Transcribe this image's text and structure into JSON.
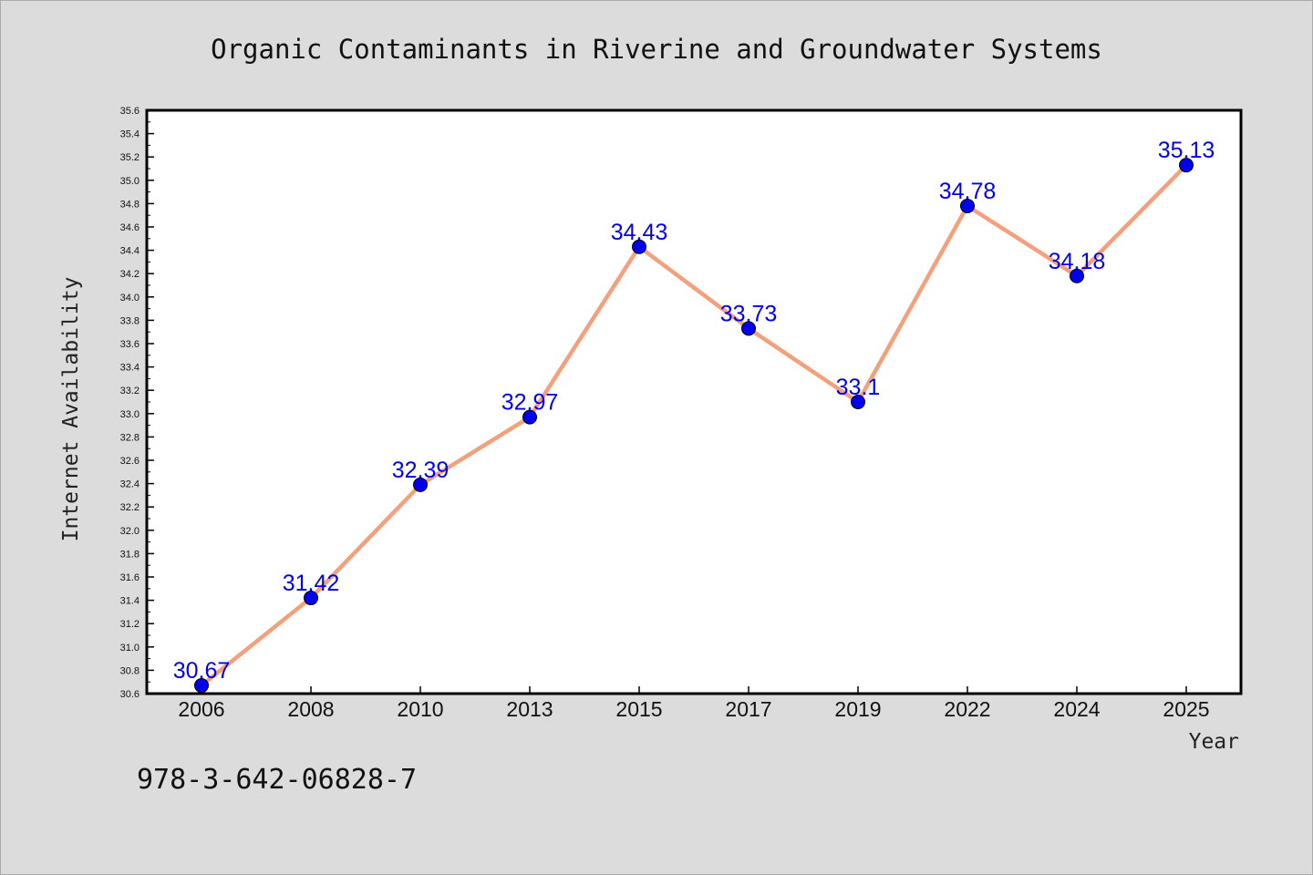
{
  "chart_data": {
    "type": "line",
    "title": "Organic Contaminants in Riverine and Groundwater Systems",
    "xlabel": "Year",
    "ylabel": "Internet Availability",
    "categories": [
      "2006",
      "2008",
      "2010",
      "2013",
      "2015",
      "2017",
      "2019",
      "2022",
      "2024",
      "2025"
    ],
    "series": [
      {
        "values": [
          30.67,
          31.42,
          32.39,
          32.97,
          34.43,
          33.73,
          33.1,
          34.78,
          34.18,
          35.13
        ]
      }
    ],
    "data_labels": [
      "30.67",
      "31.42",
      "32.39",
      "32.97",
      "34.43",
      "33.73",
      "33.1",
      "34.78",
      "34.18",
      "35.13"
    ],
    "ylim": [
      30.6,
      35.6
    ],
    "yticks": [
      "30.6",
      "30.8",
      "31.0",
      "31.2",
      "31.4",
      "31.6",
      "31.8",
      "32.0",
      "32.2",
      "32.4",
      "32.6",
      "32.8",
      "33.0",
      "33.2",
      "33.4",
      "33.6",
      "33.8",
      "34.0",
      "34.2",
      "34.4",
      "34.6",
      "34.8",
      "35.0",
      "35.2",
      "35.4",
      "35.6"
    ],
    "grid": false,
    "legend": "none",
    "colors": {
      "line": "#f4a07c",
      "marker": "#0000ee",
      "label": "#0000ee"
    }
  },
  "footer_code": "978-3-642-06828-7"
}
